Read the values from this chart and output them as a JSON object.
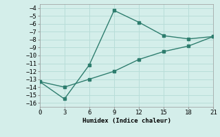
{
  "line1_x": [
    0,
    3,
    6,
    9,
    12,
    15,
    18,
    21
  ],
  "line1_y": [
    -13.3,
    -15.5,
    -11.2,
    -4.3,
    -5.8,
    -7.5,
    -7.9,
    -7.6
  ],
  "line2_x": [
    0,
    3,
    6,
    9,
    12,
    15,
    18,
    21
  ],
  "line2_y": [
    -13.3,
    -14.0,
    -13.0,
    -12.0,
    -10.5,
    -9.5,
    -8.8,
    -7.6
  ],
  "line_color": "#2e7d6e",
  "bg_color": "#d4eeea",
  "grid_color": "#b8ddd8",
  "xlabel": "Humidex (Indice chaleur)",
  "xlim": [
    0,
    21
  ],
  "ylim": [
    -16.5,
    -3.5
  ],
  "xticks": [
    0,
    3,
    6,
    9,
    12,
    15,
    18,
    21
  ],
  "yticks": [
    -4,
    -5,
    -6,
    -7,
    -8,
    -9,
    -10,
    -11,
    -12,
    -13,
    -14,
    -15,
    -16
  ]
}
